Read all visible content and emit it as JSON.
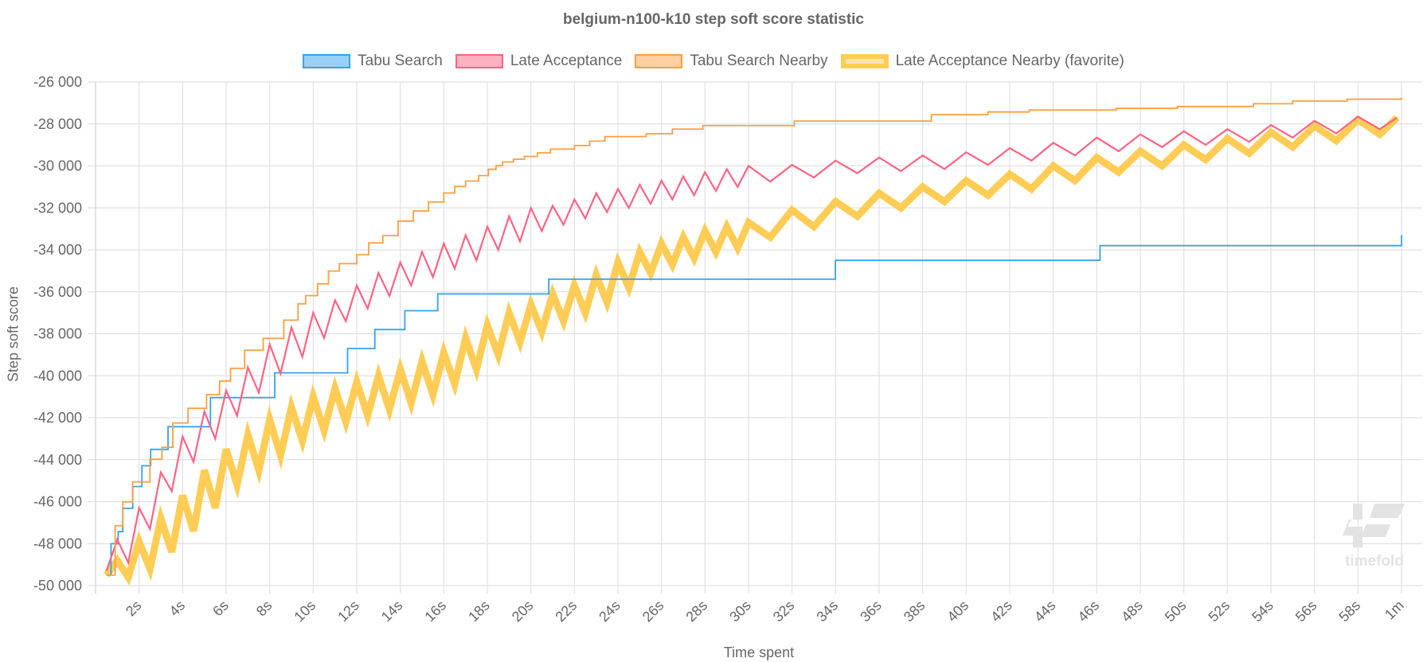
{
  "chart_data": {
    "type": "line",
    "title": "belgium-n100-k10 step soft score statistic",
    "xlabel": "Time spent",
    "ylabel": "Step soft score",
    "xlim": [
      0,
      60
    ],
    "ylim": [
      -50000,
      -26000
    ],
    "grid": true,
    "legend_position": "top",
    "x_ticks": [
      {
        "value": 2,
        "label": "2s"
      },
      {
        "value": 4,
        "label": "4s"
      },
      {
        "value": 6,
        "label": "6s"
      },
      {
        "value": 8,
        "label": "8s"
      },
      {
        "value": 10,
        "label": "10s"
      },
      {
        "value": 12,
        "label": "12s"
      },
      {
        "value": 14,
        "label": "14s"
      },
      {
        "value": 16,
        "label": "16s"
      },
      {
        "value": 18,
        "label": "18s"
      },
      {
        "value": 20,
        "label": "20s"
      },
      {
        "value": 22,
        "label": "22s"
      },
      {
        "value": 24,
        "label": "24s"
      },
      {
        "value": 26,
        "label": "26s"
      },
      {
        "value": 28,
        "label": "28s"
      },
      {
        "value": 30,
        "label": "30s"
      },
      {
        "value": 32,
        "label": "32s"
      },
      {
        "value": 34,
        "label": "34s"
      },
      {
        "value": 36,
        "label": "36s"
      },
      {
        "value": 38,
        "label": "38s"
      },
      {
        "value": 40,
        "label": "40s"
      },
      {
        "value": 42,
        "label": "42s"
      },
      {
        "value": 44,
        "label": "44s"
      },
      {
        "value": 46,
        "label": "46s"
      },
      {
        "value": 48,
        "label": "48s"
      },
      {
        "value": 50,
        "label": "50s"
      },
      {
        "value": 52,
        "label": "52s"
      },
      {
        "value": 54,
        "label": "54s"
      },
      {
        "value": 56,
        "label": "56s"
      },
      {
        "value": 58,
        "label": "58s"
      },
      {
        "value": 60,
        "label": "1m"
      }
    ],
    "y_ticks": [
      {
        "value": -26000,
        "label": "-26 000"
      },
      {
        "value": -28000,
        "label": "-28 000"
      },
      {
        "value": -30000,
        "label": "-30 000"
      },
      {
        "value": -32000,
        "label": "-32 000"
      },
      {
        "value": -34000,
        "label": "-34 000"
      },
      {
        "value": -36000,
        "label": "-36 000"
      },
      {
        "value": -38000,
        "label": "-38 000"
      },
      {
        "value": -40000,
        "label": "-40 000"
      },
      {
        "value": -42000,
        "label": "-42 000"
      },
      {
        "value": -44000,
        "label": "-44 000"
      },
      {
        "value": -46000,
        "label": "-46 000"
      },
      {
        "value": -48000,
        "label": "-48 000"
      },
      {
        "value": -50000,
        "label": "-50 000"
      }
    ],
    "series": [
      {
        "name": "Tabu Search",
        "color": "#36a2eb",
        "fill": "#9ad0f5",
        "stepped": true,
        "x": [
          0.5,
          0.71,
          1.04,
          1.25,
          1.71,
          2.13,
          2.53,
          3.33,
          5.28,
          8.23,
          11.58,
          12.83,
          14.21,
          15.72,
          20.82,
          33.99,
          46.15,
          60
        ],
        "y": [
          -49500,
          -48000,
          -47430,
          -46320,
          -45280,
          -44290,
          -43510,
          -42430,
          -41040,
          -39860,
          -38700,
          -37800,
          -36900,
          -36100,
          -35400,
          -34500,
          -33800,
          -33300
        ]
      },
      {
        "name": "Late Acceptance",
        "color": "#ff6384",
        "fill": "#ffb1c1",
        "stepped": false,
        "x": [
          0.5,
          1,
          1.5,
          2,
          2.5,
          3,
          3.5,
          4,
          4.5,
          5,
          5.5,
          6,
          6.5,
          7,
          7.5,
          8,
          8.5,
          9,
          9.5,
          10,
          10.5,
          11,
          11.5,
          12,
          12.5,
          13,
          13.5,
          14,
          14.5,
          15,
          15.5,
          16,
          16.5,
          17,
          17.5,
          18,
          18.5,
          19,
          19.5,
          20,
          20.5,
          21,
          21.5,
          22,
          22.5,
          23,
          23.5,
          24,
          24.5,
          25,
          25.5,
          26,
          26.5,
          27,
          27.5,
          28,
          28.5,
          29,
          29.5,
          30,
          31,
          32,
          33,
          34,
          35,
          36,
          37,
          38,
          39,
          40,
          41,
          42,
          43,
          44,
          45,
          46,
          47,
          48,
          49,
          50,
          51,
          52,
          53,
          54,
          55,
          56,
          57,
          58,
          59,
          59.8
        ],
        "y": [
          -49300,
          -47800,
          -48900,
          -46300,
          -47300,
          -44600,
          -45500,
          -42900,
          -44100,
          -41700,
          -43000,
          -40700,
          -41900,
          -39600,
          -40800,
          -38500,
          -39900,
          -37700,
          -39100,
          -37000,
          -38200,
          -36400,
          -37400,
          -35700,
          -36800,
          -35100,
          -36200,
          -34600,
          -35700,
          -34100,
          -35300,
          -33700,
          -34900,
          -33300,
          -34500,
          -32900,
          -34000,
          -32400,
          -33600,
          -32000,
          -33100,
          -31900,
          -32800,
          -31600,
          -32500,
          -31300,
          -32200,
          -31100,
          -32000,
          -30900,
          -31800,
          -30700,
          -31600,
          -30500,
          -31400,
          -30300,
          -31200,
          -30150,
          -31000,
          -30000,
          -30750,
          -29950,
          -30550,
          -29750,
          -30350,
          -29600,
          -30250,
          -29500,
          -30150,
          -29350,
          -29950,
          -29150,
          -29750,
          -28900,
          -29500,
          -28650,
          -29300,
          -28500,
          -29100,
          -28350,
          -29000,
          -28250,
          -28850,
          -28050,
          -28650,
          -27850,
          -28450,
          -27650,
          -28250,
          -27700
        ]
      },
      {
        "name": "Tabu Search Nearby",
        "color": "#ff9f40",
        "fill": "#ffcf9f",
        "stepped": true,
        "x": [
          0.5,
          0.9,
          1.25,
          1.7,
          2.5,
          3.05,
          3.55,
          4.25,
          5.1,
          5.7,
          6.2,
          6.85,
          7.7,
          8.65,
          9.3,
          9.65,
          10.2,
          10.7,
          11.2,
          12.0,
          12.55,
          13.2,
          13.9,
          14.6,
          15.3,
          16.0,
          16.5,
          17.0,
          17.6,
          18.05,
          18.4,
          18.7,
          19.2,
          19.7,
          20.3,
          20.9,
          22.0,
          22.7,
          23.4,
          25.3,
          26.5,
          27.9,
          32.1,
          38.4,
          41.0,
          42.9,
          46.9,
          49.7,
          53.2,
          55.0,
          57.5,
          60
        ],
        "y": [
          -49500,
          -47140,
          -46010,
          -45060,
          -43980,
          -43410,
          -42250,
          -41550,
          -40900,
          -40250,
          -39650,
          -38780,
          -38220,
          -37350,
          -36570,
          -36180,
          -35620,
          -35010,
          -34660,
          -34230,
          -33670,
          -33320,
          -32630,
          -32150,
          -31720,
          -31290,
          -30980,
          -30720,
          -30460,
          -30160,
          -29990,
          -29810,
          -29680,
          -29550,
          -29380,
          -29200,
          -29030,
          -28820,
          -28600,
          -28470,
          -28250,
          -28080,
          -27860,
          -27560,
          -27430,
          -27340,
          -27260,
          -27170,
          -27040,
          -26910,
          -26820,
          -26740
        ]
      },
      {
        "name": "Late Acceptance Nearby (favorite)",
        "color": "#ffcd56",
        "fill": "#ffe6aa",
        "stepped": false,
        "favorite": true,
        "x": [
          0.5,
          1,
          1.5,
          2,
          2.5,
          3,
          3.5,
          4,
          4.5,
          5,
          5.5,
          6,
          6.5,
          7,
          7.5,
          8,
          8.5,
          9,
          9.5,
          10,
          10.5,
          11,
          11.5,
          12,
          12.5,
          13,
          13.5,
          14,
          14.5,
          15,
          15.5,
          16,
          16.5,
          17,
          17.5,
          18,
          18.5,
          19,
          19.5,
          20,
          20.5,
          21,
          21.5,
          22,
          22.5,
          23,
          23.5,
          24,
          24.5,
          25,
          25.5,
          26,
          26.5,
          27,
          27.5,
          28,
          28.5,
          29,
          29.5,
          30,
          31,
          32,
          33,
          34,
          35,
          36,
          37,
          38,
          39,
          40,
          41,
          42,
          43,
          44,
          45,
          46,
          47,
          48,
          49,
          50,
          51,
          52,
          53,
          54,
          55,
          56,
          57,
          58,
          59,
          59.8
        ],
        "y": [
          -49500,
          -48800,
          -49600,
          -47900,
          -49200,
          -46800,
          -48400,
          -45700,
          -47400,
          -44500,
          -46300,
          -43500,
          -45200,
          -42800,
          -44500,
          -42100,
          -43800,
          -41500,
          -43100,
          -41000,
          -42600,
          -40600,
          -42200,
          -40300,
          -41900,
          -40000,
          -41600,
          -39700,
          -41300,
          -39300,
          -40900,
          -38900,
          -40400,
          -38200,
          -39700,
          -37600,
          -39000,
          -37000,
          -38400,
          -36600,
          -37900,
          -36100,
          -37400,
          -35700,
          -37000,
          -35200,
          -36500,
          -34600,
          -35800,
          -34100,
          -35100,
          -33700,
          -34700,
          -33400,
          -34400,
          -33100,
          -34100,
          -32900,
          -33900,
          -32700,
          -33400,
          -32100,
          -32900,
          -31700,
          -32400,
          -31300,
          -32000,
          -31000,
          -31700,
          -30700,
          -31400,
          -30400,
          -31100,
          -30000,
          -30700,
          -29600,
          -30300,
          -29300,
          -30000,
          -29000,
          -29700,
          -28700,
          -29400,
          -28400,
          -29100,
          -28100,
          -28800,
          -27800,
          -28500,
          -27700
        ]
      }
    ]
  },
  "watermark": {
    "text": "timefold"
  }
}
